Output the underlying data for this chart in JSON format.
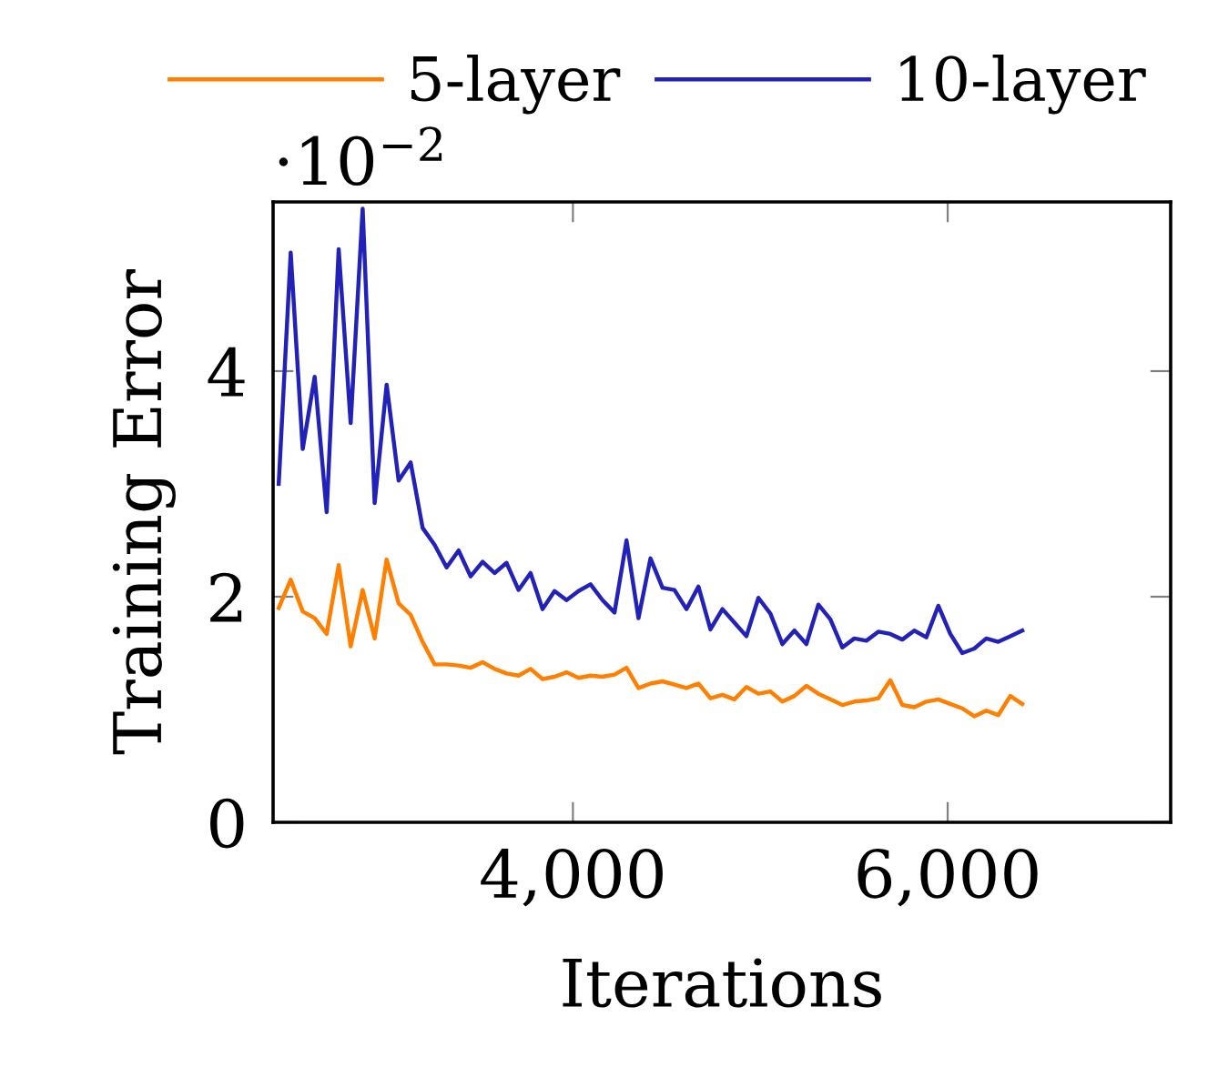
{
  "chart_data": {
    "type": "line",
    "xlabel": "Iterations",
    "ylabel": "Training Error",
    "x": [
      2430,
      2494,
      2558,
      2622,
      2686,
      2750,
      2814,
      2878,
      2942,
      3006,
      3070,
      3134,
      3198,
      3262,
      3326,
      3390,
      3454,
      3518,
      3582,
      3646,
      3710,
      3774,
      3838,
      3902,
      3966,
      4030,
      4094,
      4158,
      4222,
      4286,
      4350,
      4414,
      4478,
      4542,
      4606,
      4670,
      4734,
      4798,
      4862,
      4926,
      4990,
      5054,
      5118,
      5182,
      5246,
      5310,
      5374,
      5438,
      5502,
      5566,
      5630,
      5694,
      5758,
      5822,
      5886,
      5950,
      6014,
      6078,
      6142,
      6206,
      6270,
      6334,
      6398
    ],
    "series": [
      {
        "name": "5-layer",
        "color": "#ff8000",
        "values": [
          1.9,
          2.15,
          1.87,
          1.81,
          1.67,
          2.28,
          1.56,
          2.06,
          1.63,
          2.33,
          1.94,
          1.84,
          1.6,
          1.4,
          1.4,
          1.39,
          1.37,
          1.42,
          1.36,
          1.32,
          1.3,
          1.36,
          1.27,
          1.29,
          1.33,
          1.28,
          1.3,
          1.29,
          1.31,
          1.37,
          1.19,
          1.23,
          1.25,
          1.22,
          1.19,
          1.23,
          1.1,
          1.13,
          1.09,
          1.2,
          1.14,
          1.16,
          1.07,
          1.12,
          1.21,
          1.14,
          1.09,
          1.04,
          1.07,
          1.08,
          1.1,
          1.26,
          1.04,
          1.02,
          1.07,
          1.09,
          1.05,
          1.01,
          0.94,
          0.99,
          0.95,
          1.12,
          1.05
        ]
      },
      {
        "name": "10-layer",
        "color": "#2222b8",
        "values": [
          3.0,
          5.05,
          3.31,
          3.95,
          2.75,
          5.08,
          3.54,
          5.44,
          2.83,
          3.88,
          3.03,
          3.19,
          2.61,
          2.46,
          2.26,
          2.41,
          2.18,
          2.31,
          2.21,
          2.3,
          2.06,
          2.21,
          1.89,
          2.05,
          1.97,
          2.05,
          2.11,
          1.97,
          1.86,
          2.5,
          1.81,
          2.34,
          2.08,
          2.06,
          1.89,
          2.09,
          1.71,
          1.89,
          1.77,
          1.65,
          1.99,
          1.85,
          1.58,
          1.7,
          1.58,
          1.93,
          1.8,
          1.55,
          1.63,
          1.61,
          1.69,
          1.67,
          1.62,
          1.7,
          1.64,
          1.92,
          1.67,
          1.5,
          1.54,
          1.63,
          1.6,
          1.65,
          1.7
        ]
      }
    ],
    "xlim": [
      2400,
      7190
    ],
    "xticks": [
      {
        "value": 4000,
        "label": "4,000"
      },
      {
        "value": 6000,
        "label": "6,000"
      }
    ],
    "ylim": [
      0,
      5.5
    ],
    "yticks": [
      0,
      2,
      4
    ],
    "annotations": [
      "·10$^{−2}$"
    ],
    "legend": "top",
    "grid": false,
    "marker": "none",
    "line_style": "solid"
  }
}
